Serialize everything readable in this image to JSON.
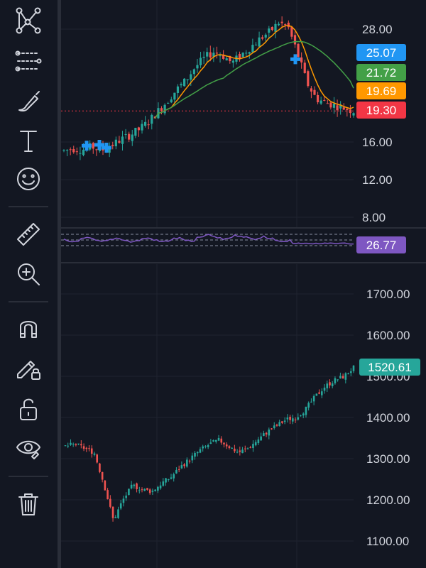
{
  "toolbar": {
    "tools": [
      {
        "name": "trend-line-tools-icon",
        "top": 6
      },
      {
        "name": "fib-tools-icon",
        "top": 64
      },
      {
        "name": "brush-icon",
        "top": 120
      },
      {
        "name": "text-tool-icon",
        "top": 176
      },
      {
        "name": "emoji-icon",
        "top": 230
      },
      {
        "name": "ruler-icon",
        "top": 308
      },
      {
        "name": "zoom-in-icon",
        "top": 364
      },
      {
        "name": "magnet-icon",
        "top": 440
      },
      {
        "name": "lock-drawings-pencil-icon",
        "top": 496
      },
      {
        "name": "unlock-icon",
        "top": 554
      },
      {
        "name": "eye-icon",
        "top": 608
      },
      {
        "name": "trash-icon",
        "top": 688
      }
    ]
  },
  "colors": {
    "background": "#131722",
    "up": "#26a69a",
    "down": "#ef5350",
    "grid": "#1f2330",
    "text": "#d1d4dc",
    "ma_fast": "#ff9800",
    "ma_slow": "#43a047",
    "rsi": "#7e57c2",
    "marker": "#2196f3"
  },
  "upper_pane": {
    "y_ticks": [
      "28.00",
      "16.00",
      "12.00",
      "8.00"
    ],
    "price_tags": [
      {
        "label": "25.07",
        "color": "#2196f3"
      },
      {
        "label": "21.72",
        "color": "#43a047"
      },
      {
        "label": "19.69",
        "color": "#ff9800"
      },
      {
        "label": "19.30",
        "color": "#f23645"
      }
    ]
  },
  "rsi_pane": {
    "value_tag": "26.77",
    "tag_color": "#7e57c2"
  },
  "lower_pane": {
    "y_ticks": [
      "1700.00",
      "1600.00",
      "1500.00",
      "1400.00",
      "1300.00",
      "1200.00",
      "1100.00"
    ],
    "last_price_tag": "1520.61",
    "tag_color": "#26a69a"
  },
  "chart_data": [
    {
      "type": "candlestick",
      "y_axis_ticks": [
        8,
        12,
        16,
        28
      ],
      "series": [
        {
          "name": "price",
          "values_path": [
            15.1,
            15.3,
            15.2,
            15.5,
            15.1,
            15.6,
            16.2,
            16.7,
            17.3,
            18.1,
            19.2,
            20.3,
            21.5,
            22.5,
            23.9,
            24.9,
            25.6,
            25.2,
            24.4,
            25.3,
            26.1,
            27.0,
            27.7,
            28.7,
            28.2,
            25.4,
            22.3,
            20.6,
            20.2,
            19.9,
            19.6,
            19.3
          ]
        },
        {
          "name": "ma_fast",
          "last": 19.69
        },
        {
          "name": "ma_slow",
          "last": 21.72
        }
      ],
      "levels": [
        25.07,
        21.72,
        19.69,
        19.3
      ]
    },
    {
      "type": "line",
      "series": [
        {
          "name": "rsi",
          "last": 26.77
        }
      ]
    },
    {
      "type": "candlestick",
      "y_axis_ticks": [
        1100,
        1200,
        1300,
        1400,
        1500,
        1600,
        1700
      ],
      "series": [
        {
          "name": "price",
          "values_path": [
            1330,
            1335,
            1325,
            1315,
            1240,
            1150,
            1200,
            1235,
            1225,
            1220,
            1240,
            1255,
            1280,
            1300,
            1320,
            1335,
            1345,
            1330,
            1315,
            1325,
            1345,
            1365,
            1380,
            1395,
            1400,
            1420,
            1450,
            1475,
            1490,
            1500,
            1520.61
          ]
        }
      ],
      "last": 1520.61
    }
  ]
}
